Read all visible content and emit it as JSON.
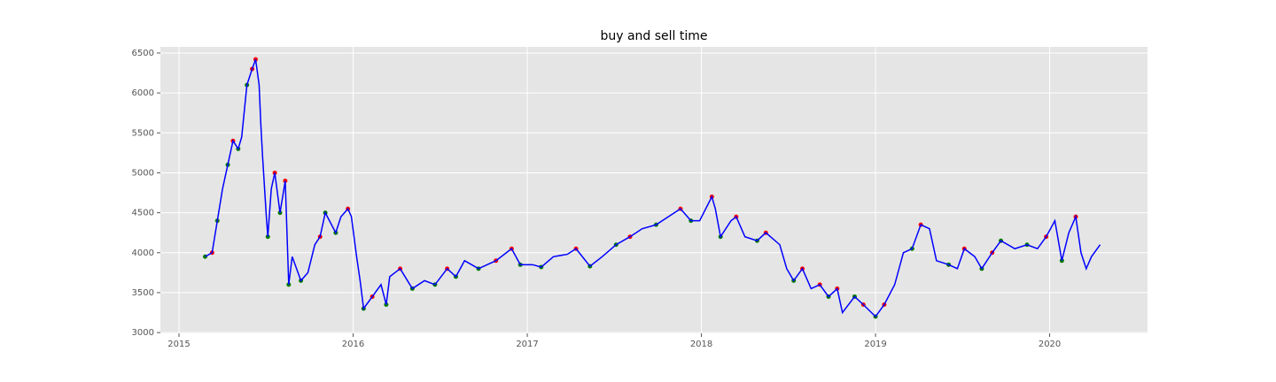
{
  "chart_data": {
    "type": "line",
    "title": "buy and sell time",
    "x": [
      2015.15,
      2015.19,
      2015.22,
      2015.25,
      2015.28,
      2015.31,
      2015.34,
      2015.36,
      2015.39,
      2015.42,
      2015.44,
      2015.46,
      2015.47,
      2015.48,
      2015.5,
      2015.51,
      2015.53,
      2015.55,
      2015.58,
      2015.61,
      2015.63,
      2015.65,
      2015.7,
      2015.74,
      2015.78,
      2015.81,
      2015.84,
      2015.9,
      2015.93,
      2015.97,
      2015.99,
      2016.02,
      2016.04,
      2016.06,
      2016.11,
      2016.16,
      2016.19,
      2016.21,
      2016.27,
      2016.34,
      2016.41,
      2016.47,
      2016.54,
      2016.59,
      2016.64,
      2016.72,
      2016.82,
      2016.91,
      2016.96,
      2017.03,
      2017.08,
      2017.15,
      2017.23,
      2017.28,
      2017.36,
      2017.43,
      2017.51,
      2017.59,
      2017.66,
      2017.74,
      2017.81,
      2017.88,
      2017.94,
      2017.99,
      2018.06,
      2018.08,
      2018.11,
      2018.17,
      2018.2,
      2018.25,
      2018.32,
      2018.37,
      2018.45,
      2018.49,
      2018.53,
      2018.58,
      2018.63,
      2018.68,
      2018.73,
      2018.78,
      2018.81,
      2018.88,
      2018.93,
      2019.0,
      2019.05,
      2019.11,
      2019.16,
      2019.21,
      2019.26,
      2019.31,
      2019.35,
      2019.42,
      2019.47,
      2019.51,
      2019.57,
      2019.61,
      2019.67,
      2019.72,
      2019.8,
      2019.87,
      2019.93,
      2019.98,
      2020.03,
      2020.07,
      2020.11,
      2020.15,
      2020.18,
      2020.21,
      2020.24,
      2020.29
    ],
    "series": [
      {
        "color": "#0000ff",
        "values": [
          3950,
          4000,
          4400,
          4800,
          5100,
          5400,
          5300,
          5450,
          6100,
          6300,
          6420,
          6100,
          5600,
          5200,
          4500,
          4200,
          4800,
          5000,
          4500,
          4900,
          3600,
          3950,
          3650,
          3750,
          4100,
          4200,
          4500,
          4250,
          4450,
          4550,
          4450,
          3950,
          3650,
          3300,
          3450,
          3600,
          3350,
          3700,
          3800,
          3550,
          3650,
          3600,
          3800,
          3700,
          3900,
          3800,
          3900,
          4050,
          3850,
          3850,
          3820,
          3950,
          3980,
          4050,
          3830,
          3950,
          4100,
          4200,
          4300,
          4350,
          4450,
          4550,
          4400,
          4400,
          4700,
          4550,
          4200,
          4400,
          4450,
          4200,
          4150,
          4250,
          4100,
          3800,
          3650,
          3800,
          3550,
          3600,
          3450,
          3550,
          3250,
          3450,
          3350,
          3200,
          3350,
          3600,
          4000,
          4050,
          4350,
          4300,
          3900,
          3850,
          3800,
          4050,
          3950,
          3800,
          4000,
          4150,
          4050,
          4100,
          4050,
          4200,
          4400,
          3900,
          4250,
          4450,
          4000,
          3800,
          3950,
          4100
        ]
      },
      {
        "color": "#008000",
        "style": "scatter",
        "x": [
          2015.15,
          2015.22,
          2015.28,
          2015.34,
          2015.39,
          2015.51,
          2015.58,
          2015.63,
          2015.7,
          2015.84,
          2015.9,
          2016.06,
          2016.19,
          2016.34,
          2016.47,
          2016.59,
          2016.72,
          2016.96,
          2017.08,
          2017.36,
          2017.51,
          2017.74,
          2017.94,
          2018.11,
          2018.32,
          2018.53,
          2018.73,
          2018.88,
          2019.0,
          2019.21,
          2019.42,
          2019.61,
          2019.72,
          2019.87,
          2020.07
        ],
        "values": [
          3950,
          4400,
          5100,
          5300,
          6100,
          4200,
          4500,
          3600,
          3650,
          4500,
          4250,
          3300,
          3350,
          3550,
          3600,
          3700,
          3800,
          3850,
          3820,
          3830,
          4100,
          4350,
          4400,
          4200,
          4150,
          3650,
          3450,
          3450,
          3200,
          4050,
          3850,
          3800,
          4150,
          4100,
          3900
        ]
      },
      {
        "color": "#ff0000",
        "style": "scatter",
        "x": [
          2015.19,
          2015.31,
          2015.42,
          2015.44,
          2015.55,
          2015.61,
          2015.81,
          2015.97,
          2016.11,
          2016.27,
          2016.54,
          2016.82,
          2016.91,
          2017.28,
          2017.59,
          2017.88,
          2018.06,
          2018.2,
          2018.37,
          2018.58,
          2018.68,
          2018.78,
          2018.93,
          2019.05,
          2019.26,
          2019.51,
          2019.67,
          2019.98,
          2020.15
        ],
        "values": [
          4000,
          5400,
          6300,
          6420,
          5000,
          4900,
          4200,
          4550,
          3450,
          3800,
          3800,
          3900,
          4050,
          4050,
          4200,
          4550,
          4700,
          4450,
          4250,
          3800,
          3600,
          3550,
          3350,
          3350,
          4350,
          4050,
          4000,
          4200,
          4450
        ]
      }
    ],
    "xlim": [
      2014.893,
      2020.562
    ],
    "ylim": [
      2990,
      6577
    ],
    "xticks": [
      2015,
      2016,
      2017,
      2018,
      2019,
      2020
    ],
    "yticks": [
      3000,
      3500,
      4000,
      4500,
      5000,
      5500,
      6000,
      6500
    ],
    "grid": true
  }
}
